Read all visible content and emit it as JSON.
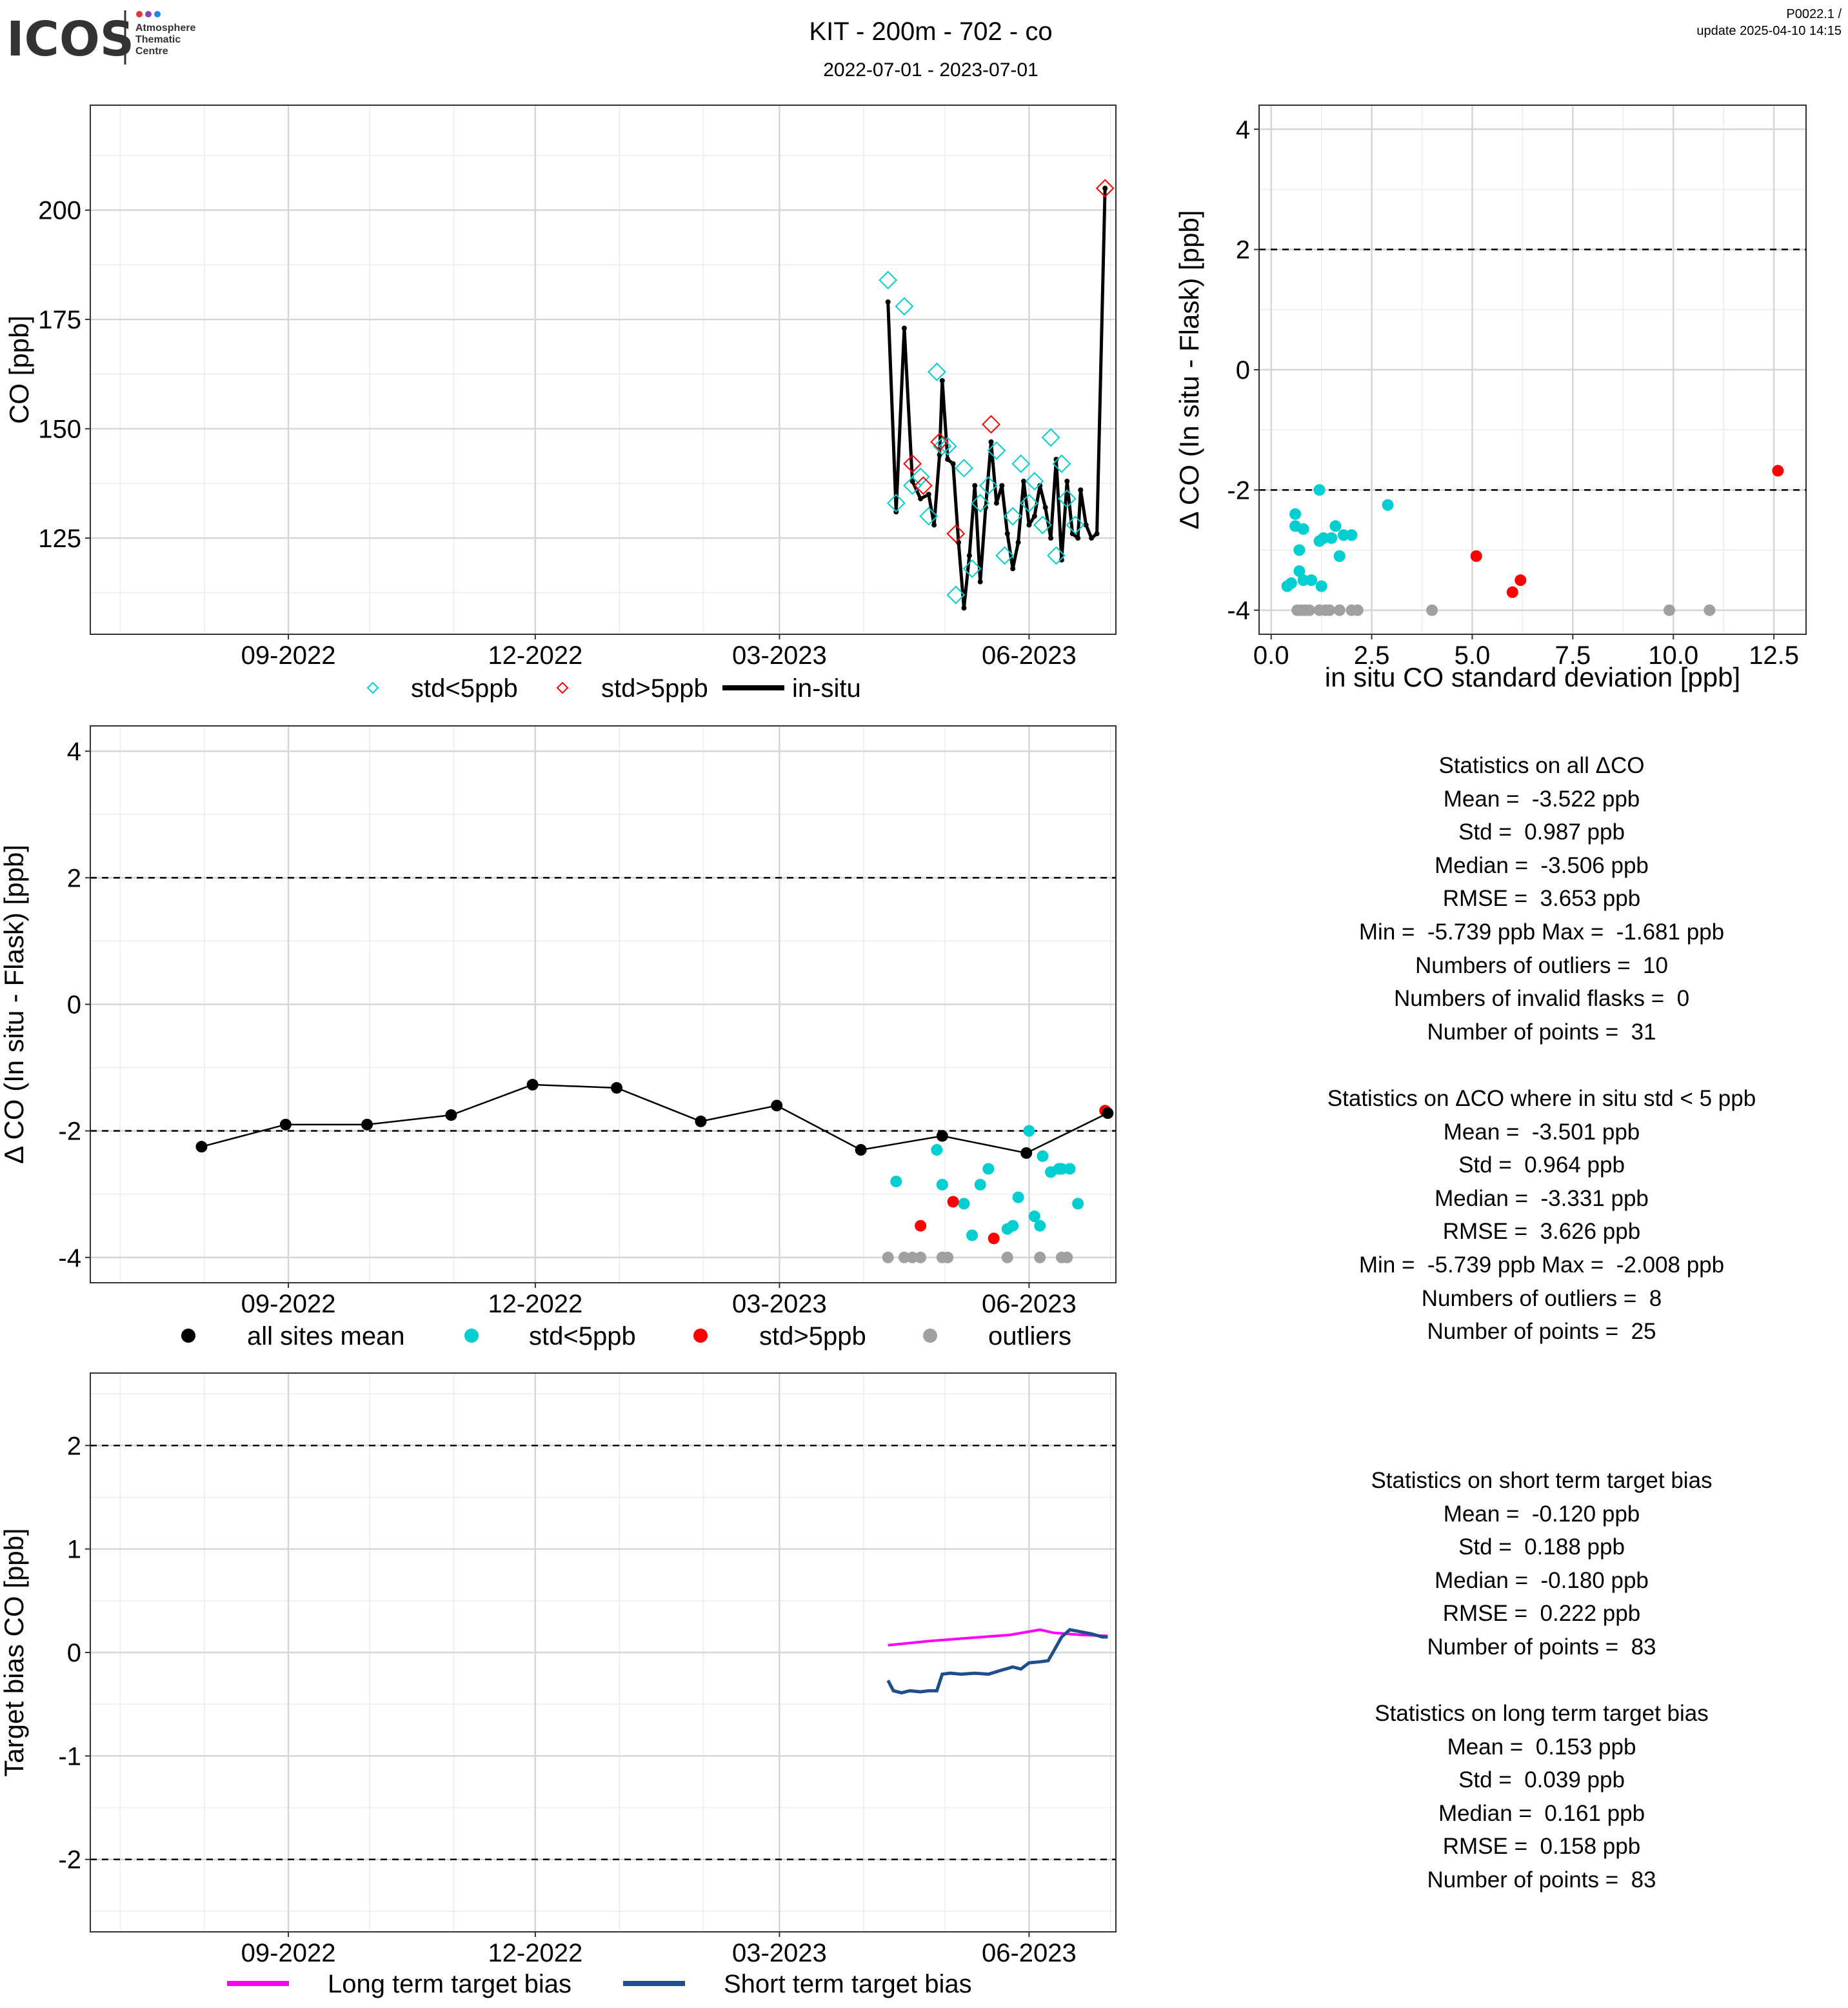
{
  "header": {
    "logo_text": "ICOS",
    "logo_sub": [
      "Atmosphere",
      "Thematic",
      "Centre"
    ],
    "title": "KIT - 200m - 702 - co",
    "subtitle": "2022-07-01 - 2023-07-01",
    "version": "P0022.1 /",
    "update": "update  2025-04-10 14:15"
  },
  "colors": {
    "cyan": "#00CED1",
    "red": "#FF0000",
    "grey": "#A0A0A0",
    "black": "#000000",
    "magenta": "#FF00FF",
    "navy": "#1F4E8C"
  },
  "chart_data": [
    {
      "id": "co_timeseries",
      "type": "line",
      "title": "",
      "xlabel": "",
      "ylabel": "CO [ppb]",
      "x_ticks": [
        "09-2022",
        "12-2022",
        "03-2023",
        "06-2023"
      ],
      "y_ticks": [
        125,
        150,
        175,
        200
      ],
      "xlim": [
        "2022-06-20",
        "2023-07-03"
      ],
      "ylim": [
        103,
        224
      ],
      "grid": true,
      "legend": {
        "position": "bottom",
        "entries": [
          "std<5ppb",
          "std>5ppb",
          "in-situ"
        ]
      },
      "series": [
        {
          "name": "in-situ",
          "kind": "line",
          "x": [
            "2023-04-10",
            "2023-04-13",
            "2023-04-16",
            "2023-04-19",
            "2023-04-22",
            "2023-04-25",
            "2023-04-27",
            "2023-04-29",
            "2023-04-30",
            "2023-05-02",
            "2023-05-04",
            "2023-05-06",
            "2023-05-08",
            "2023-05-10",
            "2023-05-12",
            "2023-05-14",
            "2023-05-16",
            "2023-05-18",
            "2023-05-20",
            "2023-05-22",
            "2023-05-24",
            "2023-05-26",
            "2023-05-28",
            "2023-05-30",
            "2023-06-01",
            "2023-06-03",
            "2023-06-05",
            "2023-06-07",
            "2023-06-09",
            "2023-06-11",
            "2023-06-13",
            "2023-06-15",
            "2023-06-17",
            "2023-06-19",
            "2023-06-20",
            "2023-06-22",
            "2023-06-24",
            "2023-06-26",
            "2023-06-29"
          ],
          "y": [
            179,
            131,
            173,
            138,
            134,
            135,
            128,
            144,
            161,
            143,
            142,
            124,
            109,
            121,
            137,
            115,
            132,
            147,
            133,
            137,
            126,
            118,
            124,
            138,
            128,
            130,
            137,
            132,
            125,
            143,
            120,
            138,
            126,
            125,
            136,
            128,
            125,
            126,
            205
          ]
        },
        {
          "name": "std<5ppb",
          "kind": "marker",
          "x": [
            "2023-04-10",
            "2023-04-13",
            "2023-04-16",
            "2023-04-19",
            "2023-04-22",
            "2023-04-25",
            "2023-04-28",
            "2023-04-30",
            "2023-05-02",
            "2023-05-05",
            "2023-05-08",
            "2023-05-11",
            "2023-05-14",
            "2023-05-17",
            "2023-05-20",
            "2023-05-23",
            "2023-05-26",
            "2023-05-29",
            "2023-06-01",
            "2023-06-03",
            "2023-06-06",
            "2023-06-09",
            "2023-06-11",
            "2023-06-13",
            "2023-06-15",
            "2023-06-18"
          ],
          "y": [
            184,
            133,
            178,
            137,
            139,
            130,
            163,
            146,
            146,
            112,
            141,
            118,
            133,
            137,
            145,
            121,
            130,
            142,
            133,
            138,
            128,
            148,
            121,
            142,
            134,
            128
          ]
        },
        {
          "name": "std>5ppb",
          "kind": "marker",
          "x": [
            "2023-04-19",
            "2023-04-23",
            "2023-04-29",
            "2023-05-05",
            "2023-05-18",
            "2023-06-29"
          ],
          "y": [
            142,
            137,
            147,
            126,
            151,
            205
          ]
        }
      ]
    },
    {
      "id": "delta_vs_std",
      "type": "scatter",
      "title": "",
      "xlabel": "in situ CO standard deviation [ppb]",
      "ylabel": "Δ CO (In situ - Flask) [ppb]",
      "x_ticks": [
        "0.0",
        "2.5",
        "5.0",
        "7.5",
        "10.0",
        "12.5"
      ],
      "y_ticks": [
        "-4",
        "-2",
        "0",
        "2",
        "4"
      ],
      "xlim": [
        -0.3,
        13.3
      ],
      "ylim": [
        -4.4,
        4.4
      ],
      "dashed_h_lines": [
        2,
        -2
      ],
      "grid": true,
      "series": [
        {
          "name": "std<5ppb",
          "x": [
            0.4,
            0.5,
            0.6,
            0.6,
            0.7,
            0.7,
            0.8,
            0.8,
            1.0,
            1.2,
            1.2,
            1.25,
            1.3,
            1.5,
            1.6,
            1.7,
            1.7,
            1.8,
            2.0,
            2.9
          ],
          "y": [
            -3.6,
            -3.55,
            -2.4,
            -2.6,
            -3.0,
            -3.35,
            -2.65,
            -3.5,
            -3.5,
            -2.0,
            -2.85,
            -3.6,
            -2.8,
            -2.8,
            -2.6,
            -3.1,
            -3.1,
            -2.75,
            -2.75,
            -2.25
          ]
        },
        {
          "name": "std>5ppb",
          "x": [
            5.1,
            6.0,
            6.2,
            12.6
          ],
          "y": [
            -3.1,
            -3.7,
            -3.5,
            -1.68
          ]
        },
        {
          "name": "outliers",
          "x": [
            0.65,
            0.75,
            0.85,
            0.95,
            1.2,
            1.35,
            1.45,
            1.7,
            2.0,
            2.15,
            4.0,
            9.9,
            10.9
          ],
          "y": [
            -4,
            -4,
            -4,
            -4,
            -4,
            -4,
            -4,
            -4,
            -4,
            -4,
            -4,
            -4,
            -4
          ]
        }
      ]
    },
    {
      "id": "delta_timeseries",
      "type": "scatter",
      "title": "",
      "xlabel": "",
      "ylabel": "Δ CO (In situ - Flask) [ppb]",
      "x_ticks": [
        "09-2022",
        "12-2022",
        "03-2023",
        "06-2023"
      ],
      "y_ticks": [
        "-4",
        "-2",
        "0",
        "2",
        "4"
      ],
      "xlim": [
        "2022-06-20",
        "2023-07-03"
      ],
      "ylim": [
        -4.4,
        4.4
      ],
      "dashed_h_lines": [
        2,
        -2
      ],
      "grid": true,
      "legend": {
        "position": "bottom",
        "entries": [
          "all sites mean",
          "std<5ppb",
          "std>5ppb",
          "outliers"
        ]
      },
      "series": [
        {
          "name": "all sites mean",
          "kind": "line+marker",
          "x": [
            "2022-07-31",
            "2022-08-31",
            "2022-09-30",
            "2022-10-31",
            "2022-11-30",
            "2022-12-31",
            "2023-01-31",
            "2023-02-28",
            "2023-03-31",
            "2023-04-30",
            "2023-05-31",
            "2023-06-30"
          ],
          "y": [
            -2.25,
            -1.9,
            -1.9,
            -1.75,
            -1.27,
            -1.32,
            -1.85,
            -1.6,
            -2.3,
            -2.08,
            -2.35,
            -1.72
          ]
        },
        {
          "name": "std<5ppb",
          "x": [
            "2023-04-13",
            "2023-04-28",
            "2023-04-30",
            "2023-05-08",
            "2023-05-11",
            "2023-05-14",
            "2023-05-17",
            "2023-05-24",
            "2023-05-26",
            "2023-05-28",
            "2023-06-01",
            "2023-06-03",
            "2023-06-05",
            "2023-06-06",
            "2023-06-09",
            "2023-06-12",
            "2023-06-13",
            "2023-06-16",
            "2023-06-19"
          ],
          "y": [
            -2.8,
            -2.3,
            -2.85,
            -3.15,
            -3.65,
            -2.85,
            -2.6,
            -3.55,
            -3.5,
            -3.05,
            -2.0,
            -3.35,
            -3.5,
            -2.4,
            -2.65,
            -2.6,
            -2.6,
            -2.6,
            -3.15
          ]
        },
        {
          "name": "std>5ppb",
          "x": [
            "2023-04-22",
            "2023-05-04",
            "2023-05-19",
            "2023-06-29"
          ],
          "y": [
            -3.5,
            -3.12,
            -3.7,
            -1.68
          ]
        },
        {
          "name": "outliers",
          "x": [
            "2023-04-10",
            "2023-04-16",
            "2023-04-19",
            "2023-04-22",
            "2023-04-30",
            "2023-05-02",
            "2023-05-24",
            "2023-06-05",
            "2023-06-13",
            "2023-06-15"
          ],
          "y": [
            -4,
            -4,
            -4,
            -4,
            -4,
            -4,
            -4,
            -4,
            -4,
            -4
          ]
        }
      ]
    },
    {
      "id": "target_bias",
      "type": "line",
      "title": "",
      "xlabel": "",
      "ylabel": "Target bias CO [ppb]",
      "x_ticks": [
        "09-2022",
        "12-2022",
        "03-2023",
        "06-2023"
      ],
      "y_ticks": [
        "-2",
        "-1",
        "0",
        "1",
        "2"
      ],
      "xlim": [
        "2022-06-20",
        "2023-07-03"
      ],
      "ylim": [
        -2.7,
        2.7
      ],
      "dashed_h_lines": [
        2,
        -2
      ],
      "grid": true,
      "legend": {
        "position": "bottom",
        "entries": [
          "Long term target bias",
          "Short term target bias"
        ]
      },
      "series": [
        {
          "name": "Long term target bias",
          "x": [
            "2023-04-10",
            "2023-04-25",
            "2023-05-10",
            "2023-05-25",
            "2023-06-05",
            "2023-06-10",
            "2023-06-20",
            "2023-06-30"
          ],
          "y": [
            0.07,
            0.11,
            0.14,
            0.17,
            0.22,
            0.19,
            0.17,
            0.16
          ]
        },
        {
          "name": "Short term target bias",
          "x": [
            "2023-04-10",
            "2023-04-12",
            "2023-04-15",
            "2023-04-18",
            "2023-04-22",
            "2023-04-25",
            "2023-04-28",
            "2023-04-30",
            "2023-05-03",
            "2023-05-07",
            "2023-05-12",
            "2023-05-17",
            "2023-05-22",
            "2023-05-26",
            "2023-05-29",
            "2023-06-01",
            "2023-06-05",
            "2023-06-08",
            "2023-06-10",
            "2023-06-13",
            "2023-06-16",
            "2023-06-20",
            "2023-06-24",
            "2023-06-28",
            "2023-06-30"
          ],
          "y": [
            -0.27,
            -0.37,
            -0.39,
            -0.37,
            -0.38,
            -0.37,
            -0.37,
            -0.21,
            -0.2,
            -0.21,
            -0.2,
            -0.21,
            -0.17,
            -0.14,
            -0.16,
            -0.1,
            -0.09,
            -0.08,
            0.01,
            0.15,
            0.22,
            0.2,
            0.18,
            0.15,
            0.15
          ]
        }
      ]
    }
  ],
  "statistics": {
    "all": {
      "heading": "Statistics on all ΔCO",
      "lines": [
        "Mean =  -3.522 ppb",
        "Std =  0.987 ppb",
        "Median =  -3.506 ppb",
        "RMSE =  3.653 ppb",
        "Min =  -5.739 ppb Max =  -1.681 ppb",
        "Numbers of outliers =  10",
        "Numbers of invalid flasks =  0",
        "Number of points =  31"
      ]
    },
    "std5": {
      "heading": "Statistics on ΔCO where in situ std < 5 ppb",
      "lines": [
        "Mean =  -3.501 ppb",
        "Std =  0.964 ppb",
        "Median =  -3.331 ppb",
        "RMSE =  3.626 ppb",
        "Min =  -5.739 ppb Max =  -2.008 ppb",
        "Numbers of outliers =  8",
        "Number of points =  25"
      ]
    },
    "short": {
      "heading": "Statistics on short term target bias",
      "lines": [
        "Mean =  -0.120 ppb",
        "Std =  0.188 ppb",
        "Median =  -0.180 ppb",
        "RMSE =  0.222 ppb",
        "Number of points =  83"
      ]
    },
    "long": {
      "heading": "Statistics on long term target bias",
      "lines": [
        "Mean =  0.153 ppb",
        "Std =  0.039 ppb",
        "Median =  0.161 ppb",
        "RMSE =  0.158 ppb",
        "Number of points =  83"
      ]
    }
  }
}
